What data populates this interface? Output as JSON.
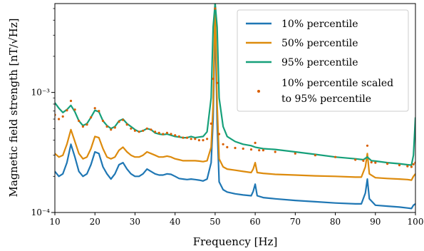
{
  "chart_data": {
    "type": "line",
    "xlabel": "Frequency [Hz]",
    "ylabel": "Magnetic field strength [nT/√Hz]",
    "xlim": [
      10,
      100
    ],
    "ylim": [
      0.0001,
      0.0055
    ],
    "yscale": "log",
    "grid": false,
    "legend_position": "top-right",
    "x_ticks": [
      10,
      20,
      30,
      40,
      50,
      60,
      70,
      80,
      90,
      100
    ],
    "x_tick_labels": [
      "10",
      "20",
      "30",
      "40",
      "50",
      "60",
      "70",
      "80",
      "90",
      "100"
    ],
    "y_ticks": [
      0.0001,
      0.001
    ],
    "y_tick_labels": [
      "10⁻⁴",
      "10⁻³"
    ],
    "series": [
      {
        "name": "10% percentile",
        "color": "#1f77b4",
        "style": "line",
        "points": [
          [
            10,
            0.00022
          ],
          [
            11,
            0.0002
          ],
          [
            12,
            0.00021
          ],
          [
            13,
            0.00026
          ],
          [
            14,
            0.00037
          ],
          [
            15,
            0.00029
          ],
          [
            16,
            0.00022
          ],
          [
            17,
            0.0002
          ],
          [
            18,
            0.00021
          ],
          [
            19,
            0.00025
          ],
          [
            20,
            0.00032
          ],
          [
            21,
            0.00031
          ],
          [
            22,
            0.00024
          ],
          [
            23,
            0.00021
          ],
          [
            24,
            0.00019
          ],
          [
            25,
            0.00021
          ],
          [
            26,
            0.00025
          ],
          [
            27,
            0.00026
          ],
          [
            28,
            0.00023
          ],
          [
            29,
            0.00021
          ],
          [
            30,
            0.0002
          ],
          [
            31,
            0.0002
          ],
          [
            32,
            0.00021
          ],
          [
            33,
            0.00023
          ],
          [
            34,
            0.00022
          ],
          [
            35,
            0.00021
          ],
          [
            36,
            0.000205
          ],
          [
            37,
            0.000205
          ],
          [
            38,
            0.00021
          ],
          [
            39,
            0.000208
          ],
          [
            40,
            0.0002
          ],
          [
            41,
            0.000192
          ],
          [
            42,
            0.00019
          ],
          [
            43,
            0.000188
          ],
          [
            44,
            0.00019
          ],
          [
            45,
            0.000188
          ],
          [
            46,
            0.000186
          ],
          [
            47,
            0.000183
          ],
          [
            48,
            0.00019
          ],
          [
            49,
            0.00026
          ],
          [
            49.5,
            0.0006
          ],
          [
            50,
            0.0042
          ],
          [
            50.5,
            0.00055
          ],
          [
            51,
            0.00018
          ],
          [
            52,
            0.000155
          ],
          [
            53,
            0.000148
          ],
          [
            55,
            0.000143
          ],
          [
            57,
            0.00014
          ],
          [
            59,
            0.000138
          ],
          [
            59.5,
            0.00015
          ],
          [
            60,
            0.000172
          ],
          [
            60.5,
            0.000138
          ],
          [
            62,
            0.000133
          ],
          [
            65,
            0.00013
          ],
          [
            70,
            0.000126
          ],
          [
            75,
            0.000123
          ],
          [
            80,
            0.00012
          ],
          [
            85,
            0.000118
          ],
          [
            86.5,
            0.000118
          ],
          [
            87.5,
            0.000145
          ],
          [
            88,
            0.00019
          ],
          [
            88.5,
            0.00013
          ],
          [
            90,
            0.000115
          ],
          [
            93,
            0.000113
          ],
          [
            96,
            0.000111
          ],
          [
            98,
            0.000109
          ],
          [
            99,
            0.000108
          ],
          [
            99.5,
            0.000115
          ],
          [
            100,
            0.000118
          ]
        ]
      },
      {
        "name": "50% percentile",
        "color": "#dd8b0d",
        "style": "line",
        "points": [
          [
            10,
            0.00031
          ],
          [
            11,
            0.00029
          ],
          [
            12,
            0.0003
          ],
          [
            13,
            0.00037
          ],
          [
            14,
            0.00049
          ],
          [
            15,
            0.00039
          ],
          [
            16,
            0.00031
          ],
          [
            17,
            0.00028
          ],
          [
            18,
            0.00029
          ],
          [
            19,
            0.00034
          ],
          [
            20,
            0.00043
          ],
          [
            21,
            0.00042
          ],
          [
            22,
            0.00034
          ],
          [
            23,
            0.00029
          ],
          [
            24,
            0.00028
          ],
          [
            25,
            0.00029
          ],
          [
            26,
            0.00033
          ],
          [
            27,
            0.00035
          ],
          [
            28,
            0.00032
          ],
          [
            29,
            0.0003
          ],
          [
            30,
            0.00029
          ],
          [
            31,
            0.00029
          ],
          [
            32,
            0.0003
          ],
          [
            33,
            0.00032
          ],
          [
            34,
            0.00031
          ],
          [
            35,
            0.0003
          ],
          [
            36,
            0.00029
          ],
          [
            37,
            0.00029
          ],
          [
            38,
            0.000295
          ],
          [
            39,
            0.00029
          ],
          [
            40,
            0.00028
          ],
          [
            41,
            0.000275
          ],
          [
            42,
            0.00027
          ],
          [
            43,
            0.00027
          ],
          [
            44,
            0.00027
          ],
          [
            45,
            0.00027
          ],
          [
            46,
            0.000268
          ],
          [
            47,
            0.000265
          ],
          [
            48,
            0.00027
          ],
          [
            49,
            0.00035
          ],
          [
            49.5,
            0.0008
          ],
          [
            50,
            0.0055
          ],
          [
            50.5,
            0.0008
          ],
          [
            51,
            0.00028
          ],
          [
            52,
            0.00024
          ],
          [
            53,
            0.00023
          ],
          [
            55,
            0.000225
          ],
          [
            57,
            0.00022
          ],
          [
            59,
            0.000215
          ],
          [
            59.5,
            0.00023
          ],
          [
            60,
            0.00026
          ],
          [
            60.5,
            0.000215
          ],
          [
            62,
            0.000212
          ],
          [
            65,
            0.000208
          ],
          [
            70,
            0.000205
          ],
          [
            75,
            0.000202
          ],
          [
            80,
            0.0002
          ],
          [
            85,
            0.000197
          ],
          [
            86.5,
            0.000197
          ],
          [
            87.5,
            0.00024
          ],
          [
            88,
            0.00031
          ],
          [
            88.5,
            0.00021
          ],
          [
            90,
            0.000195
          ],
          [
            93,
            0.000192
          ],
          [
            96,
            0.00019
          ],
          [
            98,
            0.000188
          ],
          [
            99,
            0.000186
          ],
          [
            99.5,
            0.0002
          ],
          [
            100,
            0.00021
          ]
        ]
      },
      {
        "name": "95% percentile",
        "color": "#16a07a",
        "style": "line",
        "points": [
          [
            10,
            0.00082
          ],
          [
            11,
            0.00074
          ],
          [
            12,
            0.00068
          ],
          [
            13,
            0.00072
          ],
          [
            14,
            0.00078
          ],
          [
            15,
            0.00069
          ],
          [
            16,
            0.00058
          ],
          [
            17,
            0.00053
          ],
          [
            18,
            0.00055
          ],
          [
            19,
            0.00062
          ],
          [
            20,
            0.00071
          ],
          [
            21,
            0.00069
          ],
          [
            22,
            0.00058
          ],
          [
            23,
            0.00053
          ],
          [
            24,
            0.0005
          ],
          [
            25,
            0.00052
          ],
          [
            26,
            0.00058
          ],
          [
            27,
            0.0006
          ],
          [
            28,
            0.00055
          ],
          [
            29,
            0.00052
          ],
          [
            30,
            0.00049
          ],
          [
            31,
            0.00047
          ],
          [
            32,
            0.00048
          ],
          [
            33,
            0.0005
          ],
          [
            34,
            0.00049
          ],
          [
            35,
            0.00046
          ],
          [
            36,
            0.00045
          ],
          [
            37,
            0.000445
          ],
          [
            38,
            0.00045
          ],
          [
            39,
            0.00044
          ],
          [
            40,
            0.00043
          ],
          [
            41,
            0.000425
          ],
          [
            42,
            0.00042
          ],
          [
            43,
            0.00042
          ],
          [
            44,
            0.00043
          ],
          [
            45,
            0.00042
          ],
          [
            46,
            0.000425
          ],
          [
            47,
            0.00043
          ],
          [
            48,
            0.00047
          ],
          [
            49,
            0.0009
          ],
          [
            49.5,
            0.0035
          ],
          [
            50,
            0.0055
          ],
          [
            50.5,
            0.0035
          ],
          [
            51,
            0.0009
          ],
          [
            52,
            0.00052
          ],
          [
            53,
            0.00043
          ],
          [
            55,
            0.00039
          ],
          [
            57,
            0.00037
          ],
          [
            59,
            0.00036
          ],
          [
            60,
            0.00035
          ],
          [
            62,
            0.00034
          ],
          [
            65,
            0.000335
          ],
          [
            70,
            0.00032
          ],
          [
            75,
            0.000305
          ],
          [
            80,
            0.00029
          ],
          [
            85,
            0.00028
          ],
          [
            87,
            0.000275
          ],
          [
            88,
            0.00029
          ],
          [
            89,
            0.00027
          ],
          [
            90,
            0.000268
          ],
          [
            93,
            0.00026
          ],
          [
            96,
            0.000255
          ],
          [
            98,
            0.00025
          ],
          [
            99,
            0.000248
          ],
          [
            99.5,
            0.0003
          ],
          [
            100,
            0.00062
          ]
        ]
      },
      {
        "name": "10% percentile scaled to 95% percentile",
        "legend_lines": [
          "10% percentile scaled",
          "to 95% percentile"
        ],
        "color": "#d95f02",
        "style": "dots",
        "points": [
          [
            10,
            0.00065
          ],
          [
            11,
            0.0006
          ],
          [
            12,
            0.00063
          ],
          [
            13,
            0.00071
          ],
          [
            14,
            0.00085
          ],
          [
            15,
            0.00072
          ],
          [
            16,
            0.00058
          ],
          [
            17,
            0.00052
          ],
          [
            18,
            0.00054
          ],
          [
            19,
            0.00062
          ],
          [
            20,
            0.00074
          ],
          [
            21,
            0.0007
          ],
          [
            22,
            0.00058
          ],
          [
            23,
            0.00052
          ],
          [
            24,
            0.00049
          ],
          [
            25,
            0.00051
          ],
          [
            26,
            0.00057
          ],
          [
            27,
            0.00059
          ],
          [
            28,
            0.00054
          ],
          [
            29,
            0.0005
          ],
          [
            30,
            0.00048
          ],
          [
            31,
            0.00047
          ],
          [
            32,
            0.00048
          ],
          [
            33,
            0.0005
          ],
          [
            34,
            0.00049
          ],
          [
            35,
            0.00047
          ],
          [
            36,
            0.00046
          ],
          [
            37,
            0.00045
          ],
          [
            38,
            0.00046
          ],
          [
            39,
            0.00045
          ],
          [
            40,
            0.00044
          ],
          [
            41,
            0.00043
          ],
          [
            42,
            0.00042
          ],
          [
            43,
            0.00042
          ],
          [
            44,
            0.00041
          ],
          [
            45,
            0.00041
          ],
          [
            46,
            0.0004
          ],
          [
            47,
            0.0004
          ],
          [
            48,
            0.00041
          ],
          [
            49,
            0.00055
          ],
          [
            49.5,
            0.0013
          ],
          [
            50,
            0.005
          ],
          [
            50.5,
            0.0012
          ],
          [
            51,
            0.00045
          ],
          [
            52,
            0.00037
          ],
          [
            53,
            0.00035
          ],
          [
            55,
            0.000345
          ],
          [
            57,
            0.00034
          ],
          [
            59,
            0.000335
          ],
          [
            60,
            0.00038
          ],
          [
            61,
            0.00033
          ],
          [
            62,
            0.00033
          ],
          [
            65,
            0.00032
          ],
          [
            70,
            0.00031
          ],
          [
            75,
            0.0003
          ],
          [
            80,
            0.00029
          ],
          [
            85,
            0.000275
          ],
          [
            87,
            0.00027
          ],
          [
            88,
            0.00036
          ],
          [
            89,
            0.000262
          ],
          [
            90,
            0.00026
          ],
          [
            93,
            0.000255
          ],
          [
            96,
            0.000248
          ],
          [
            98,
            0.000243
          ],
          [
            99,
            0.00024
          ],
          [
            99.5,
            0.000252
          ],
          [
            100,
            0.00026
          ]
        ]
      }
    ]
  }
}
